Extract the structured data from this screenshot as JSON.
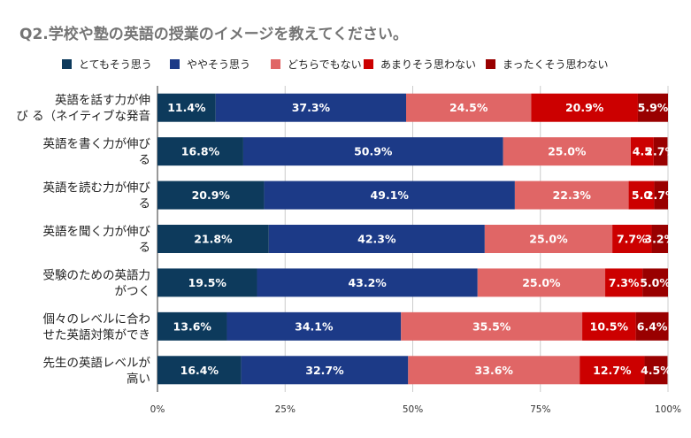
{
  "title": "Q2.学校や塾の英語の授業のイメージを教えてください。",
  "chart_data": {
    "type": "bar",
    "orientation": "horizontal",
    "stacked": "100%",
    "title": "Q2.学校や塾の英語の授業のイメージを教えてください。",
    "categories": [
      "英語を話す力が伸びる（ネイティブな発音",
      "英語を書く力が伸びる",
      "英語を読む力が伸びる",
      "英語を聞く力が伸びる",
      "受験のための英語力がつく",
      "個々のレベルに合わせた英語対策ができ",
      "先生の英語レベルが高い"
    ],
    "category_lines": [
      [
        "英語を話す力が伸",
        "び る（ネイティブな発音"
      ],
      [
        "英語を書く力が伸び",
        "る"
      ],
      [
        "英語を読む力が伸び",
        "る"
      ],
      [
        "英語を聞く力が伸び",
        "る"
      ],
      [
        "受験のための英語力",
        "がつく"
      ],
      [
        "個々のレベルに合わ",
        "せた英語対策ができ"
      ],
      [
        "先生の英語レベルが",
        "高い"
      ]
    ],
    "series": [
      {
        "name": "とてもそう思う",
        "color": "#0d3a5c",
        "values": [
          11.4,
          16.8,
          20.9,
          21.8,
          19.5,
          13.6,
          16.4
        ]
      },
      {
        "name": "ややそう思う",
        "color": "#1c3a87",
        "values": [
          37.3,
          50.9,
          49.1,
          42.3,
          43.2,
          34.1,
          32.7
        ]
      },
      {
        "name": "どちらでもない",
        "color": "#e06666",
        "values": [
          24.5,
          25.0,
          22.3,
          25.0,
          25.0,
          35.5,
          33.6
        ]
      },
      {
        "name": "あまりそう思わない",
        "color": "#cc0000",
        "values": [
          20.9,
          4.5,
          5.0,
          7.7,
          7.3,
          10.5,
          12.7
        ]
      },
      {
        "name": "まったくそう思わない",
        "color": "#990000",
        "values": [
          5.9,
          2.7,
          2.7,
          3.2,
          5.0,
          6.4,
          4.5
        ]
      }
    ],
    "value_labels": [
      [
        "11.4%",
        "37.3%",
        "24.5%",
        "20.9%",
        "5.9%"
      ],
      [
        "16.8%",
        "50.9%",
        "25.0%",
        "4.5",
        "2.7%"
      ],
      [
        "20.9%",
        "49.1%",
        "22.3%",
        "5.0",
        "2.7%"
      ],
      [
        "21.8%",
        "42.3%",
        "25.0%",
        "7.7%",
        "3.2%"
      ],
      [
        "19.5%",
        "43.2%",
        "25.0%",
        "7.3%",
        "5.0%"
      ],
      [
        "13.6%",
        "34.1%",
        "35.5%",
        "10.5%",
        "6.4%"
      ],
      [
        "16.4%",
        "32.7%",
        "33.6%",
        "12.7%",
        "4.5%"
      ]
    ],
    "x_ticks": [
      "0%",
      "25%",
      "50%",
      "75%",
      "100%"
    ],
    "xlim": [
      0,
      100
    ],
    "legend_position": "top",
    "grid": true
  }
}
